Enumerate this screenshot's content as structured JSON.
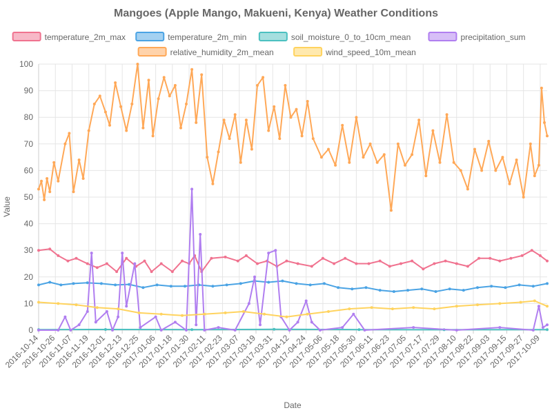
{
  "chart_data": {
    "type": "line",
    "title": "Mangoes (Apple Mango, Makueni, Kenya) Weather Conditions",
    "xlabel": "Date",
    "ylabel": "Value",
    "ylim": [
      0,
      100
    ],
    "yticks": [
      0,
      10,
      20,
      30,
      40,
      50,
      60,
      70,
      80,
      90,
      100
    ],
    "x_range": [
      "2016-10-14",
      "2017-10-14"
    ],
    "x_tick_labels": [
      "2016-10-14",
      "2016-10-26",
      "2016-11-07",
      "2016-11-19",
      "2016-12-01",
      "2016-12-13",
      "2016-12-25",
      "2017-01-06",
      "2017-01-18",
      "2017-01-30",
      "2017-02-11",
      "2017-02-23",
      "2017-03-07",
      "2017-03-19",
      "2017-03-31",
      "2017-04-12",
      "2017-04-24",
      "2017-05-06",
      "2017-05-18",
      "2017-05-30",
      "2017-06-11",
      "2017-06-23",
      "2017-07-05",
      "2017-07-17",
      "2017-07-29",
      "2017-08-10",
      "2017-08-22",
      "2017-09-03",
      "2017-09-15",
      "2017-09-27",
      "2017-10-09"
    ],
    "grid": true,
    "legend_position": "top",
    "series": [
      {
        "name": "temperature_2m_max",
        "color": "#f0728f",
        "points": [
          [
            "2016-10-14",
            30
          ],
          [
            "2016-10-22",
            30.5
          ],
          [
            "2016-10-28",
            28
          ],
          [
            "2016-11-04",
            26
          ],
          [
            "2016-11-10",
            27
          ],
          [
            "2016-11-18",
            25
          ],
          [
            "2016-11-25",
            23.5
          ],
          [
            "2016-12-02",
            25
          ],
          [
            "2016-12-09",
            22
          ],
          [
            "2016-12-16",
            27
          ],
          [
            "2016-12-23",
            24
          ],
          [
            "2016-12-29",
            26
          ],
          [
            "2017-01-03",
            22
          ],
          [
            "2017-01-10",
            25
          ],
          [
            "2017-01-18",
            22
          ],
          [
            "2017-01-25",
            26
          ],
          [
            "2017-01-30",
            25
          ],
          [
            "2017-02-03",
            28
          ],
          [
            "2017-02-08",
            22
          ],
          [
            "2017-02-15",
            27
          ],
          [
            "2017-02-25",
            27.5
          ],
          [
            "2017-03-06",
            26
          ],
          [
            "2017-03-12",
            28
          ],
          [
            "2017-03-20",
            25
          ],
          [
            "2017-03-27",
            26
          ],
          [
            "2017-04-03",
            24
          ],
          [
            "2017-04-10",
            26
          ],
          [
            "2017-04-18",
            25
          ],
          [
            "2017-04-28",
            24
          ],
          [
            "2017-05-06",
            27
          ],
          [
            "2017-05-14",
            25
          ],
          [
            "2017-05-22",
            27
          ],
          [
            "2017-05-30",
            25
          ],
          [
            "2017-06-08",
            25
          ],
          [
            "2017-06-16",
            26
          ],
          [
            "2017-06-23",
            24
          ],
          [
            "2017-07-01",
            25
          ],
          [
            "2017-07-09",
            26
          ],
          [
            "2017-07-17",
            23
          ],
          [
            "2017-07-25",
            25
          ],
          [
            "2017-08-02",
            26
          ],
          [
            "2017-08-10",
            25
          ],
          [
            "2017-08-18",
            24
          ],
          [
            "2017-08-26",
            27
          ],
          [
            "2017-09-03",
            27
          ],
          [
            "2017-09-10",
            26
          ],
          [
            "2017-09-18",
            27
          ],
          [
            "2017-09-26",
            28
          ],
          [
            "2017-10-03",
            30
          ],
          [
            "2017-10-09",
            28
          ],
          [
            "2017-10-14",
            26
          ]
        ]
      },
      {
        "name": "temperature_2m_min",
        "color": "#4aa3e4",
        "points": [
          [
            "2016-10-14",
            17
          ],
          [
            "2016-10-22",
            18
          ],
          [
            "2016-10-30",
            17
          ],
          [
            "2016-11-08",
            17.5
          ],
          [
            "2016-11-18",
            17.8
          ],
          [
            "2016-11-28",
            17.5
          ],
          [
            "2016-12-08",
            17
          ],
          [
            "2016-12-18",
            17.2
          ],
          [
            "2016-12-28",
            16
          ],
          [
            "2017-01-07",
            17
          ],
          [
            "2017-01-17",
            16.5
          ],
          [
            "2017-01-27",
            16.5
          ],
          [
            "2017-02-06",
            17
          ],
          [
            "2017-02-16",
            16.5
          ],
          [
            "2017-02-26",
            17
          ],
          [
            "2017-03-08",
            17.5
          ],
          [
            "2017-03-18",
            18.5
          ],
          [
            "2017-03-28",
            18
          ],
          [
            "2017-04-07",
            18.5
          ],
          [
            "2017-04-17",
            17.5
          ],
          [
            "2017-04-27",
            17
          ],
          [
            "2017-05-07",
            17.5
          ],
          [
            "2017-05-17",
            16
          ],
          [
            "2017-05-27",
            15.5
          ],
          [
            "2017-06-06",
            16
          ],
          [
            "2017-06-16",
            15
          ],
          [
            "2017-06-26",
            14.5
          ],
          [
            "2017-07-06",
            15
          ],
          [
            "2017-07-16",
            15.5
          ],
          [
            "2017-07-26",
            14.5
          ],
          [
            "2017-08-05",
            15.5
          ],
          [
            "2017-08-15",
            15
          ],
          [
            "2017-08-25",
            16
          ],
          [
            "2017-09-04",
            16.5
          ],
          [
            "2017-09-14",
            16
          ],
          [
            "2017-09-24",
            17
          ],
          [
            "2017-10-04",
            16.5
          ],
          [
            "2017-10-14",
            17.5
          ]
        ]
      },
      {
        "name": "soil_moisture_0_to_10cm_mean",
        "color": "#4bc0c0",
        "points": [
          [
            "2016-10-14",
            0.2
          ],
          [
            "2016-12-01",
            0.25
          ],
          [
            "2017-02-01",
            0.2
          ],
          [
            "2017-04-01",
            0.3
          ],
          [
            "2017-06-01",
            0.2
          ],
          [
            "2017-08-01",
            0.15
          ],
          [
            "2017-10-14",
            0.2
          ]
        ]
      },
      {
        "name": "precipitation_sum",
        "color": "#b07ef0",
        "points": [
          [
            "2016-10-14",
            0
          ],
          [
            "2016-10-28",
            0
          ],
          [
            "2016-11-02",
            5
          ],
          [
            "2016-11-06",
            0
          ],
          [
            "2016-11-12",
            2
          ],
          [
            "2016-11-18",
            7
          ],
          [
            "2016-11-21",
            29
          ],
          [
            "2016-11-24",
            3
          ],
          [
            "2016-12-02",
            7
          ],
          [
            "2016-12-06",
            0
          ],
          [
            "2016-12-10",
            5
          ],
          [
            "2016-12-13",
            29
          ],
          [
            "2016-12-16",
            9
          ],
          [
            "2016-12-22",
            25
          ],
          [
            "2016-12-26",
            1
          ],
          [
            "2017-01-06",
            5
          ],
          [
            "2017-01-10",
            0
          ],
          [
            "2017-01-20",
            3
          ],
          [
            "2017-01-28",
            0
          ],
          [
            "2017-02-01",
            53
          ],
          [
            "2017-02-04",
            2
          ],
          [
            "2017-02-07",
            36
          ],
          [
            "2017-02-10",
            0
          ],
          [
            "2017-02-20",
            1
          ],
          [
            "2017-03-04",
            0
          ],
          [
            "2017-03-14",
            10
          ],
          [
            "2017-03-18",
            20
          ],
          [
            "2017-03-22",
            2
          ],
          [
            "2017-03-28",
            29
          ],
          [
            "2017-04-02",
            30
          ],
          [
            "2017-04-06",
            5
          ],
          [
            "2017-04-12",
            0
          ],
          [
            "2017-04-18",
            3
          ],
          [
            "2017-04-24",
            11
          ],
          [
            "2017-04-28",
            3
          ],
          [
            "2017-05-04",
            0
          ],
          [
            "2017-05-20",
            1
          ],
          [
            "2017-05-28",
            6
          ],
          [
            "2017-06-05",
            0
          ],
          [
            "2017-07-10",
            1
          ],
          [
            "2017-08-10",
            0
          ],
          [
            "2017-09-10",
            1
          ],
          [
            "2017-10-04",
            0
          ],
          [
            "2017-10-08",
            9
          ],
          [
            "2017-10-11",
            1
          ],
          [
            "2017-10-14",
            2
          ]
        ]
      },
      {
        "name": "relative_humidity_2m_mean",
        "color": "#ffa857",
        "points": [
          [
            "2016-10-14",
            53
          ],
          [
            "2016-10-16",
            56
          ],
          [
            "2016-10-18",
            49
          ],
          [
            "2016-10-20",
            57
          ],
          [
            "2016-10-22",
            52
          ],
          [
            "2016-10-25",
            63
          ],
          [
            "2016-10-28",
            56
          ],
          [
            "2016-11-02",
            70
          ],
          [
            "2016-11-05",
            74
          ],
          [
            "2016-11-08",
            52
          ],
          [
            "2016-11-12",
            64
          ],
          [
            "2016-11-15",
            57
          ],
          [
            "2016-11-19",
            75
          ],
          [
            "2016-11-23",
            85
          ],
          [
            "2016-11-27",
            88
          ],
          [
            "2016-12-01",
            82
          ],
          [
            "2016-12-04",
            77
          ],
          [
            "2016-12-08",
            93
          ],
          [
            "2016-12-12",
            84
          ],
          [
            "2016-12-16",
            75
          ],
          [
            "2016-12-20",
            85
          ],
          [
            "2016-12-24",
            100
          ],
          [
            "2016-12-28",
            76
          ],
          [
            "2017-01-01",
            94
          ],
          [
            "2017-01-04",
            73
          ],
          [
            "2017-01-08",
            87
          ],
          [
            "2017-01-12",
            95
          ],
          [
            "2017-01-16",
            88
          ],
          [
            "2017-01-20",
            92
          ],
          [
            "2017-01-24",
            76
          ],
          [
            "2017-01-28",
            85
          ],
          [
            "2017-02-01",
            98
          ],
          [
            "2017-02-04",
            78
          ],
          [
            "2017-02-08",
            96
          ],
          [
            "2017-02-12",
            65
          ],
          [
            "2017-02-16",
            55
          ],
          [
            "2017-02-20",
            67
          ],
          [
            "2017-02-24",
            79
          ],
          [
            "2017-02-28",
            72
          ],
          [
            "2017-03-04",
            81
          ],
          [
            "2017-03-08",
            63
          ],
          [
            "2017-03-12",
            79
          ],
          [
            "2017-03-16",
            68
          ],
          [
            "2017-03-20",
            92
          ],
          [
            "2017-03-24",
            95
          ],
          [
            "2017-03-28",
            75
          ],
          [
            "2017-04-01",
            84
          ],
          [
            "2017-04-05",
            72
          ],
          [
            "2017-04-09",
            92
          ],
          [
            "2017-04-13",
            80
          ],
          [
            "2017-04-17",
            83
          ],
          [
            "2017-04-21",
            73
          ],
          [
            "2017-04-25",
            86
          ],
          [
            "2017-04-29",
            72
          ],
          [
            "2017-05-05",
            65
          ],
          [
            "2017-05-10",
            68
          ],
          [
            "2017-05-15",
            62
          ],
          [
            "2017-05-20",
            77
          ],
          [
            "2017-05-25",
            63
          ],
          [
            "2017-05-30",
            80
          ],
          [
            "2017-06-04",
            65
          ],
          [
            "2017-06-09",
            70
          ],
          [
            "2017-06-14",
            63
          ],
          [
            "2017-06-19",
            66
          ],
          [
            "2017-06-24",
            45
          ],
          [
            "2017-06-29",
            70
          ],
          [
            "2017-07-04",
            62
          ],
          [
            "2017-07-09",
            66
          ],
          [
            "2017-07-14",
            79
          ],
          [
            "2017-07-19",
            58
          ],
          [
            "2017-07-24",
            75
          ],
          [
            "2017-07-29",
            63
          ],
          [
            "2017-08-03",
            81
          ],
          [
            "2017-08-08",
            63
          ],
          [
            "2017-08-13",
            60
          ],
          [
            "2017-08-18",
            53
          ],
          [
            "2017-08-23",
            68
          ],
          [
            "2017-08-28",
            60
          ],
          [
            "2017-09-02",
            71
          ],
          [
            "2017-09-07",
            60
          ],
          [
            "2017-09-12",
            65
          ],
          [
            "2017-09-17",
            55
          ],
          [
            "2017-09-22",
            64
          ],
          [
            "2017-09-27",
            50
          ],
          [
            "2017-10-02",
            70
          ],
          [
            "2017-10-05",
            58
          ],
          [
            "2017-10-08",
            62
          ],
          [
            "2017-10-10",
            91
          ],
          [
            "2017-10-12",
            78
          ],
          [
            "2017-10-14",
            73
          ]
        ]
      },
      {
        "name": "wind_speed_10m_mean",
        "color": "#ffd35e",
        "points": [
          [
            "2016-10-14",
            10.5
          ],
          [
            "2016-10-28",
            10
          ],
          [
            "2016-11-10",
            9.5
          ],
          [
            "2016-11-25",
            8.5
          ],
          [
            "2016-12-10",
            8
          ],
          [
            "2016-12-25",
            6.5
          ],
          [
            "2017-01-10",
            6
          ],
          [
            "2017-01-25",
            5.5
          ],
          [
            "2017-02-10",
            6
          ],
          [
            "2017-02-25",
            6.5
          ],
          [
            "2017-03-10",
            7
          ],
          [
            "2017-03-25",
            6
          ],
          [
            "2017-04-10",
            5
          ],
          [
            "2017-04-25",
            6
          ],
          [
            "2017-05-10",
            7
          ],
          [
            "2017-05-25",
            8
          ],
          [
            "2017-06-10",
            8.5
          ],
          [
            "2017-06-25",
            8
          ],
          [
            "2017-07-10",
            8.5
          ],
          [
            "2017-07-25",
            8
          ],
          [
            "2017-08-10",
            9
          ],
          [
            "2017-08-25",
            9.5
          ],
          [
            "2017-09-10",
            10
          ],
          [
            "2017-09-25",
            10.5
          ],
          [
            "2017-10-05",
            11
          ],
          [
            "2017-10-14",
            9
          ]
        ]
      }
    ]
  }
}
